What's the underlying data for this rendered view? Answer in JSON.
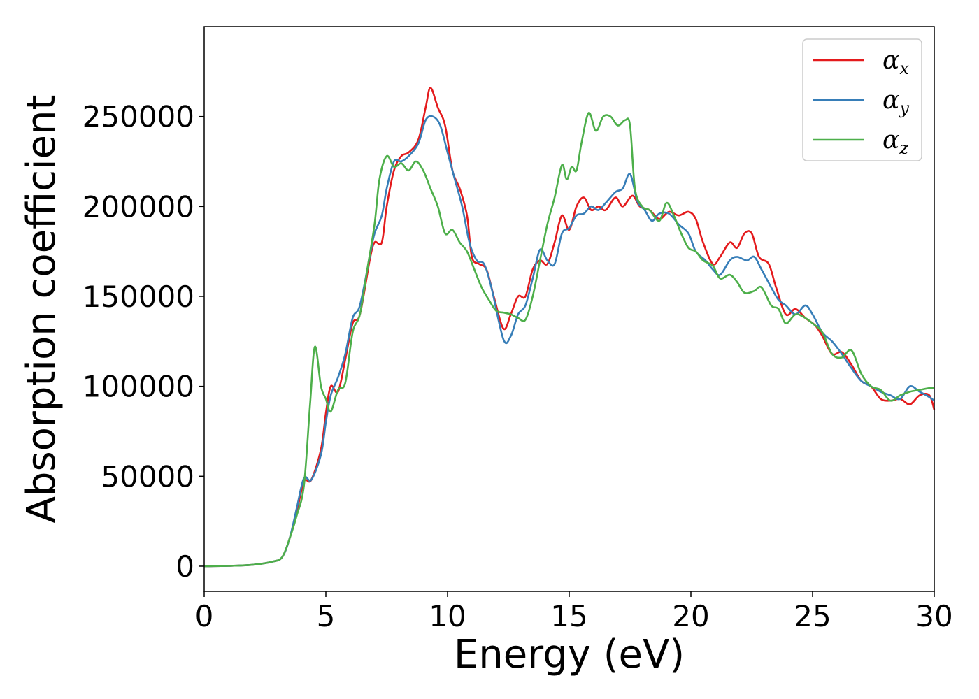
{
  "chart_data": {
    "type": "line",
    "xlabel": "Energy (eV)",
    "ylabel": "Absorption coefficient",
    "xlim": [
      0,
      30
    ],
    "ylim": [
      -14000,
      300000
    ],
    "x_ticks": [
      0,
      5,
      10,
      15,
      20,
      25,
      30
    ],
    "y_ticks": [
      0,
      50000,
      100000,
      150000,
      200000,
      250000
    ],
    "grid": false,
    "legend_placement": "top-right",
    "colors": {
      "alpha_x": "#e41a1c",
      "alpha_y": "#377eb8",
      "alpha_z": "#4daf4a"
    },
    "legend": [
      {
        "symbol": "α",
        "subscript": "x",
        "color": "#e41a1c"
      },
      {
        "symbol": "α",
        "subscript": "y",
        "color": "#377eb8"
      },
      {
        "symbol": "α",
        "subscript": "z",
        "color": "#4daf4a"
      }
    ],
    "series": [
      {
        "name": "αx",
        "color": "#e41a1c",
        "points": [
          [
            0,
            0
          ],
          [
            1,
            200
          ],
          [
            2,
            800
          ],
          [
            2.8,
            2500
          ],
          [
            3.2,
            5000
          ],
          [
            3.5,
            15000
          ],
          [
            3.8,
            30000
          ],
          [
            4.1,
            47000
          ],
          [
            4.4,
            48000
          ],
          [
            4.8,
            65000
          ],
          [
            5.0,
            85000
          ],
          [
            5.2,
            100000
          ],
          [
            5.5,
            97000
          ],
          [
            5.8,
            115000
          ],
          [
            6.1,
            135000
          ],
          [
            6.4,
            140000
          ],
          [
            6.8,
            170000
          ],
          [
            7.0,
            180000
          ],
          [
            7.3,
            180000
          ],
          [
            7.5,
            200000
          ],
          [
            7.8,
            220000
          ],
          [
            8.1,
            228000
          ],
          [
            8.4,
            230000
          ],
          [
            8.8,
            237000
          ],
          [
            9.1,
            255000
          ],
          [
            9.3,
            266000
          ],
          [
            9.6,
            255000
          ],
          [
            9.9,
            245000
          ],
          [
            10.2,
            220000
          ],
          [
            10.5,
            210000
          ],
          [
            10.8,
            195000
          ],
          [
            11.0,
            172000
          ],
          [
            11.3,
            168000
          ],
          [
            11.6,
            165000
          ],
          [
            11.9,
            150000
          ],
          [
            12.3,
            132000
          ],
          [
            12.6,
            140000
          ],
          [
            12.9,
            150000
          ],
          [
            13.2,
            150000
          ],
          [
            13.5,
            165000
          ],
          [
            13.8,
            170000
          ],
          [
            14.1,
            168000
          ],
          [
            14.4,
            180000
          ],
          [
            14.7,
            195000
          ],
          [
            15.0,
            187000
          ],
          [
            15.3,
            200000
          ],
          [
            15.6,
            205000
          ],
          [
            15.9,
            198000
          ],
          [
            16.2,
            200000
          ],
          [
            16.5,
            198000
          ],
          [
            16.9,
            205000
          ],
          [
            17.2,
            200000
          ],
          [
            17.6,
            206000
          ],
          [
            17.9,
            200000
          ],
          [
            18.3,
            198000
          ],
          [
            18.7,
            193000
          ],
          [
            19.1,
            197000
          ],
          [
            19.5,
            195000
          ],
          [
            19.9,
            197000
          ],
          [
            20.2,
            193000
          ],
          [
            20.5,
            180000
          ],
          [
            20.9,
            168000
          ],
          [
            21.2,
            172000
          ],
          [
            21.6,
            180000
          ],
          [
            21.9,
            177000
          ],
          [
            22.2,
            185000
          ],
          [
            22.5,
            185000
          ],
          [
            22.8,
            172000
          ],
          [
            23.2,
            168000
          ],
          [
            23.5,
            155000
          ],
          [
            23.9,
            140000
          ],
          [
            24.3,
            143000
          ],
          [
            24.7,
            138000
          ],
          [
            25.1,
            134000
          ],
          [
            25.4,
            128000
          ],
          [
            25.8,
            118000
          ],
          [
            26.2,
            119000
          ],
          [
            26.6,
            112000
          ],
          [
            27.0,
            103000
          ],
          [
            27.4,
            100000
          ],
          [
            27.8,
            93000
          ],
          [
            28.2,
            92000
          ],
          [
            28.6,
            93000
          ],
          [
            29.0,
            90000
          ],
          [
            29.4,
            95000
          ],
          [
            29.8,
            95000
          ],
          [
            30.0,
            87000
          ]
        ]
      },
      {
        "name": "αy",
        "color": "#377eb8",
        "points": [
          [
            0,
            0
          ],
          [
            1,
            200
          ],
          [
            2,
            800
          ],
          [
            2.8,
            2500
          ],
          [
            3.2,
            5000
          ],
          [
            3.5,
            15000
          ],
          [
            3.8,
            32000
          ],
          [
            4.1,
            49000
          ],
          [
            4.4,
            48000
          ],
          [
            4.8,
            62000
          ],
          [
            5.0,
            80000
          ],
          [
            5.2,
            95000
          ],
          [
            5.5,
            105000
          ],
          [
            5.8,
            118000
          ],
          [
            6.1,
            138000
          ],
          [
            6.4,
            145000
          ],
          [
            6.8,
            172000
          ],
          [
            7.0,
            185000
          ],
          [
            7.3,
            195000
          ],
          [
            7.5,
            210000
          ],
          [
            7.8,
            225000
          ],
          [
            8.1,
            225000
          ],
          [
            8.4,
            228000
          ],
          [
            8.8,
            235000
          ],
          [
            9.1,
            248000
          ],
          [
            9.4,
            250000
          ],
          [
            9.7,
            245000
          ],
          [
            10.0,
            230000
          ],
          [
            10.3,
            215000
          ],
          [
            10.6,
            200000
          ],
          [
            10.9,
            180000
          ],
          [
            11.2,
            170000
          ],
          [
            11.5,
            168000
          ],
          [
            11.8,
            155000
          ],
          [
            12.3,
            126000
          ],
          [
            12.6,
            128000
          ],
          [
            12.9,
            140000
          ],
          [
            13.2,
            145000
          ],
          [
            13.5,
            160000
          ],
          [
            13.8,
            176000
          ],
          [
            14.1,
            170000
          ],
          [
            14.4,
            168000
          ],
          [
            14.7,
            185000
          ],
          [
            15.0,
            188000
          ],
          [
            15.3,
            195000
          ],
          [
            15.6,
            196000
          ],
          [
            15.9,
            200000
          ],
          [
            16.2,
            198000
          ],
          [
            16.5,
            202000
          ],
          [
            16.9,
            208000
          ],
          [
            17.2,
            210000
          ],
          [
            17.5,
            218000
          ],
          [
            17.8,
            203000
          ],
          [
            18.1,
            198000
          ],
          [
            18.4,
            192000
          ],
          [
            18.7,
            196000
          ],
          [
            19.1,
            196000
          ],
          [
            19.5,
            190000
          ],
          [
            19.9,
            185000
          ],
          [
            20.2,
            175000
          ],
          [
            20.6,
            170000
          ],
          [
            20.9,
            165000
          ],
          [
            21.2,
            162000
          ],
          [
            21.6,
            170000
          ],
          [
            21.9,
            172000
          ],
          [
            22.3,
            170000
          ],
          [
            22.6,
            172000
          ],
          [
            22.9,
            165000
          ],
          [
            23.3,
            155000
          ],
          [
            23.6,
            148000
          ],
          [
            23.9,
            145000
          ],
          [
            24.3,
            140000
          ],
          [
            24.7,
            145000
          ],
          [
            25.0,
            140000
          ],
          [
            25.4,
            130000
          ],
          [
            25.8,
            125000
          ],
          [
            26.2,
            118000
          ],
          [
            26.6,
            110000
          ],
          [
            27.0,
            103000
          ],
          [
            27.4,
            100000
          ],
          [
            27.8,
            97000
          ],
          [
            28.2,
            95000
          ],
          [
            28.6,
            93000
          ],
          [
            29.0,
            100000
          ],
          [
            29.4,
            97000
          ],
          [
            29.8,
            94000
          ],
          [
            30.0,
            92000
          ]
        ]
      },
      {
        "name": "αz",
        "color": "#4daf4a",
        "points": [
          [
            0,
            0
          ],
          [
            1,
            200
          ],
          [
            2,
            800
          ],
          [
            2.8,
            2500
          ],
          [
            3.2,
            5000
          ],
          [
            3.5,
            15000
          ],
          [
            3.8,
            28000
          ],
          [
            4.1,
            45000
          ],
          [
            4.35,
            90000
          ],
          [
            4.55,
            122000
          ],
          [
            4.8,
            100000
          ],
          [
            5.0,
            93000
          ],
          [
            5.2,
            86000
          ],
          [
            5.5,
            98000
          ],
          [
            5.8,
            102000
          ],
          [
            6.1,
            130000
          ],
          [
            6.4,
            140000
          ],
          [
            6.7,
            165000
          ],
          [
            7.0,
            190000
          ],
          [
            7.2,
            215000
          ],
          [
            7.5,
            228000
          ],
          [
            7.8,
            222000
          ],
          [
            8.1,
            224000
          ],
          [
            8.4,
            220000
          ],
          [
            8.7,
            225000
          ],
          [
            9.0,
            220000
          ],
          [
            9.3,
            210000
          ],
          [
            9.6,
            200000
          ],
          [
            9.9,
            185000
          ],
          [
            10.2,
            187000
          ],
          [
            10.5,
            180000
          ],
          [
            10.8,
            175000
          ],
          [
            11.1,
            165000
          ],
          [
            11.4,
            155000
          ],
          [
            11.7,
            148000
          ],
          [
            12.0,
            142000
          ],
          [
            12.3,
            141000
          ],
          [
            12.6,
            140000
          ],
          [
            12.9,
            138000
          ],
          [
            13.2,
            137000
          ],
          [
            13.5,
            150000
          ],
          [
            13.8,
            170000
          ],
          [
            14.1,
            190000
          ],
          [
            14.4,
            205000
          ],
          [
            14.7,
            223000
          ],
          [
            14.9,
            215000
          ],
          [
            15.1,
            222000
          ],
          [
            15.3,
            220000
          ],
          [
            15.5,
            235000
          ],
          [
            15.8,
            252000
          ],
          [
            16.1,
            242000
          ],
          [
            16.4,
            250000
          ],
          [
            16.7,
            250000
          ],
          [
            17.0,
            245000
          ],
          [
            17.3,
            248000
          ],
          [
            17.5,
            245000
          ],
          [
            17.7,
            210000
          ],
          [
            18.0,
            200000
          ],
          [
            18.3,
            198000
          ],
          [
            18.7,
            192000
          ],
          [
            19.0,
            202000
          ],
          [
            19.3,
            195000
          ],
          [
            19.6,
            185000
          ],
          [
            19.9,
            177000
          ],
          [
            20.2,
            175000
          ],
          [
            20.5,
            170000
          ],
          [
            20.9,
            167000
          ],
          [
            21.2,
            160000
          ],
          [
            21.6,
            162000
          ],
          [
            21.9,
            158000
          ],
          [
            22.2,
            152000
          ],
          [
            22.6,
            153000
          ],
          [
            22.9,
            155000
          ],
          [
            23.3,
            145000
          ],
          [
            23.6,
            143000
          ],
          [
            23.9,
            135000
          ],
          [
            24.3,
            140000
          ],
          [
            24.7,
            138000
          ],
          [
            25.0,
            135000
          ],
          [
            25.4,
            130000
          ],
          [
            25.8,
            118000
          ],
          [
            26.2,
            116000
          ],
          [
            26.6,
            120000
          ],
          [
            27.0,
            107000
          ],
          [
            27.4,
            100000
          ],
          [
            27.8,
            98000
          ],
          [
            28.2,
            92000
          ],
          [
            28.6,
            95000
          ],
          [
            29.0,
            97000
          ],
          [
            29.4,
            98000
          ],
          [
            29.8,
            99000
          ],
          [
            30.0,
            99000
          ]
        ]
      }
    ]
  }
}
